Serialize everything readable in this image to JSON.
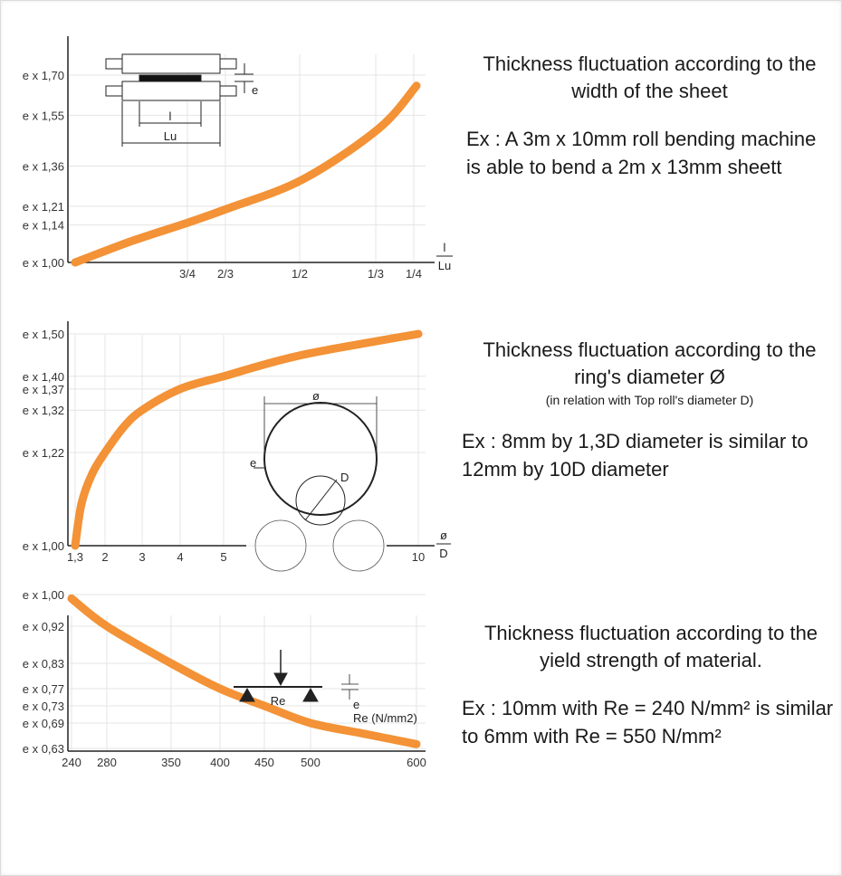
{
  "chart_data": [
    {
      "type": "line",
      "xlabel": "l/Lu",
      "x_tick_labels": [
        "3/4",
        "2/3",
        "1/2",
        "1/3",
        "1/4"
      ],
      "y_tick_labels": [
        "e x 1,00",
        "e x 1,14",
        "e x 1,21",
        "e x 1,36",
        "e x 1,55",
        "e x 1,70"
      ],
      "y_ticks": [
        1.0,
        1.14,
        1.21,
        1.36,
        1.55,
        1.7
      ],
      "ylim": [
        1.0,
        1.7
      ],
      "x": [
        1.0,
        0.875,
        0.75,
        0.667,
        0.5,
        0.333,
        0.25
      ],
      "y": [
        1.0,
        1.08,
        1.15,
        1.2,
        1.31,
        1.5,
        1.66
      ],
      "series_color": "#F39236",
      "diagram_labels": {
        "width": "l",
        "roll_length": "Lu",
        "thickness": "e"
      },
      "description": {
        "title": "Thickness fluctuation according to the width of the sheet",
        "example": "Ex : A 3m x 10mm roll bending machine is able to bend a 2m x 13mm sheett"
      }
    },
    {
      "type": "line",
      "xlabel": "Ø/D",
      "x_tick_labels": [
        "1,3",
        "2",
        "3",
        "4",
        "5",
        "10"
      ],
      "y_tick_labels": [
        "e x 1,00",
        "e x 1,22",
        "e x 1,32",
        "e x 1,37",
        "e x 1,40",
        "e x 1,50"
      ],
      "y_ticks": [
        1.0,
        1.22,
        1.32,
        1.37,
        1.4,
        1.5
      ],
      "ylim": [
        1.0,
        1.5
      ],
      "x": [
        1.3,
        1.45,
        1.7,
        2.0,
        2.5,
        3.0,
        4.0,
        5.0,
        7.0,
        10.0
      ],
      "y": [
        1.0,
        1.1,
        1.17,
        1.22,
        1.28,
        1.32,
        1.37,
        1.4,
        1.45,
        1.5
      ],
      "series_color": "#F39236",
      "diagram_labels": {
        "ring_diameter": "ø",
        "roll_diameter": "D",
        "thickness": "e"
      },
      "description": {
        "title": "Thickness fluctuation according to the ring's diameter Ø",
        "subtitle": "(in relation with Top roll's diameter D)",
        "example": "Ex : 8mm by 1,3D diameter is similar to 12mm by 10D diameter"
      }
    },
    {
      "type": "line",
      "xlabel": "Re (N/mm2)",
      "x_tick_labels": [
        "240",
        "280",
        "350",
        "400",
        "450",
        "500",
        "600"
      ],
      "x_ticks": [
        240,
        280,
        350,
        400,
        450,
        500,
        600
      ],
      "y_tick_labels": [
        "e x 0,63",
        "e x 0,69",
        "e x 0,73",
        "e x 0,77",
        "e x 0,83",
        "e x 0,92",
        "e x 1,00"
      ],
      "y_ticks": [
        0.63,
        0.69,
        0.73,
        0.77,
        0.83,
        0.92,
        1.0
      ],
      "ylim": [
        0.63,
        1.0
      ],
      "x": [
        240,
        280,
        350,
        400,
        450,
        500,
        550,
        600
      ],
      "y": [
        0.99,
        0.92,
        0.83,
        0.77,
        0.73,
        0.69,
        0.665,
        0.64
      ],
      "series_color": "#F39236",
      "diagram_labels": {
        "yield_strength": "Re",
        "thickness": "e"
      },
      "description": {
        "title": "Thickness fluctuation according to the yield strength of material.",
        "example": "Ex : 10mm with Re = 240 N/mm² is similar to 6mm with Re = 550 N/mm²"
      }
    }
  ]
}
